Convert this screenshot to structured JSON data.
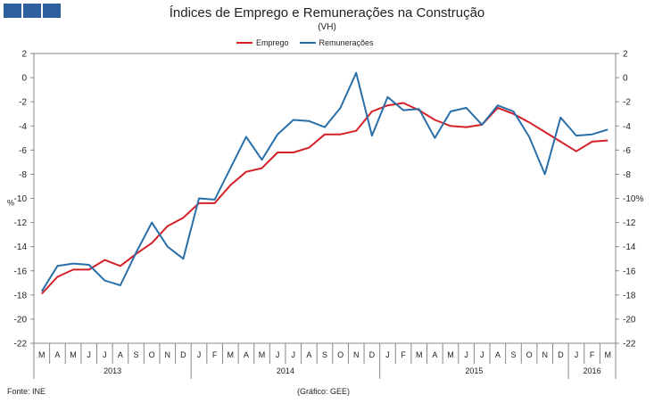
{
  "colors": {
    "emprego": "#d42027",
    "remuneracoes": "#2a6fa8",
    "logo": "#2f5f9e"
  },
  "header": {
    "logo_icon": "gee-logo-icon"
  },
  "footer": {
    "source": "Fonte: INE",
    "credit": "(Gráfico: GEE)"
  },
  "chart_data": {
    "type": "line",
    "title": "Índices de Emprego e Remunerações na Construção",
    "subtitle": "(VH)",
    "ylabel_left": "%",
    "ylabel_right_suffix": "%",
    "ylim": [
      -22,
      2
    ],
    "yticks": [
      2,
      0,
      -2,
      -4,
      -6,
      -8,
      -10,
      -12,
      -14,
      -16,
      -18,
      -20,
      -22
    ],
    "months": [
      "M",
      "A",
      "M",
      "J",
      "J",
      "A",
      "S",
      "O",
      "N",
      "D",
      "J",
      "F",
      "M",
      "A",
      "M",
      "J",
      "J",
      "A",
      "S",
      "O",
      "N",
      "D",
      "J",
      "F",
      "M",
      "A",
      "M",
      "J",
      "J",
      "A",
      "S",
      "O",
      "N",
      "D",
      "J",
      "F",
      "M"
    ],
    "years": [
      {
        "label": "2013",
        "start": 0,
        "end": 9
      },
      {
        "label": "2014",
        "start": 10,
        "end": 21
      },
      {
        "label": "2015",
        "start": 22,
        "end": 33
      },
      {
        "label": "2016",
        "start": 34,
        "end": 36
      }
    ],
    "series": [
      {
        "name": "Emprego",
        "color": "#d42027",
        "values": [
          -17.9,
          -16.5,
          -15.9,
          -15.9,
          -15.1,
          -15.6,
          -14.6,
          -13.7,
          -12.3,
          -11.6,
          -10.4,
          -10.4,
          -8.9,
          -7.8,
          -7.5,
          -6.2,
          -6.2,
          -5.8,
          -4.7,
          -4.7,
          -4.4,
          -2.8,
          -2.3,
          -2.1,
          -2.7,
          -3.5,
          -4.0,
          -4.1,
          -3.9,
          -2.5,
          -3.0,
          -3.7,
          -4.5,
          -5.3,
          -6.1,
          -5.3,
          -5.2
        ]
      },
      {
        "name": "Remunerações",
        "color": "#2a6fa8",
        "values": [
          -17.7,
          -15.6,
          -15.4,
          -15.5,
          -16.8,
          -17.2,
          -14.5,
          -12.0,
          -14.0,
          -15.0,
          -10.0,
          -10.1,
          -7.5,
          -4.9,
          -6.8,
          -4.7,
          -3.5,
          -3.6,
          -4.1,
          -2.5,
          0.4,
          -4.8,
          -1.6,
          -2.7,
          -2.6,
          -5.0,
          -2.8,
          -2.5,
          -3.9,
          -2.3,
          -2.8,
          -4.9,
          -8.0,
          -3.3,
          -4.8,
          -4.7,
          -4.3
        ]
      }
    ]
  }
}
